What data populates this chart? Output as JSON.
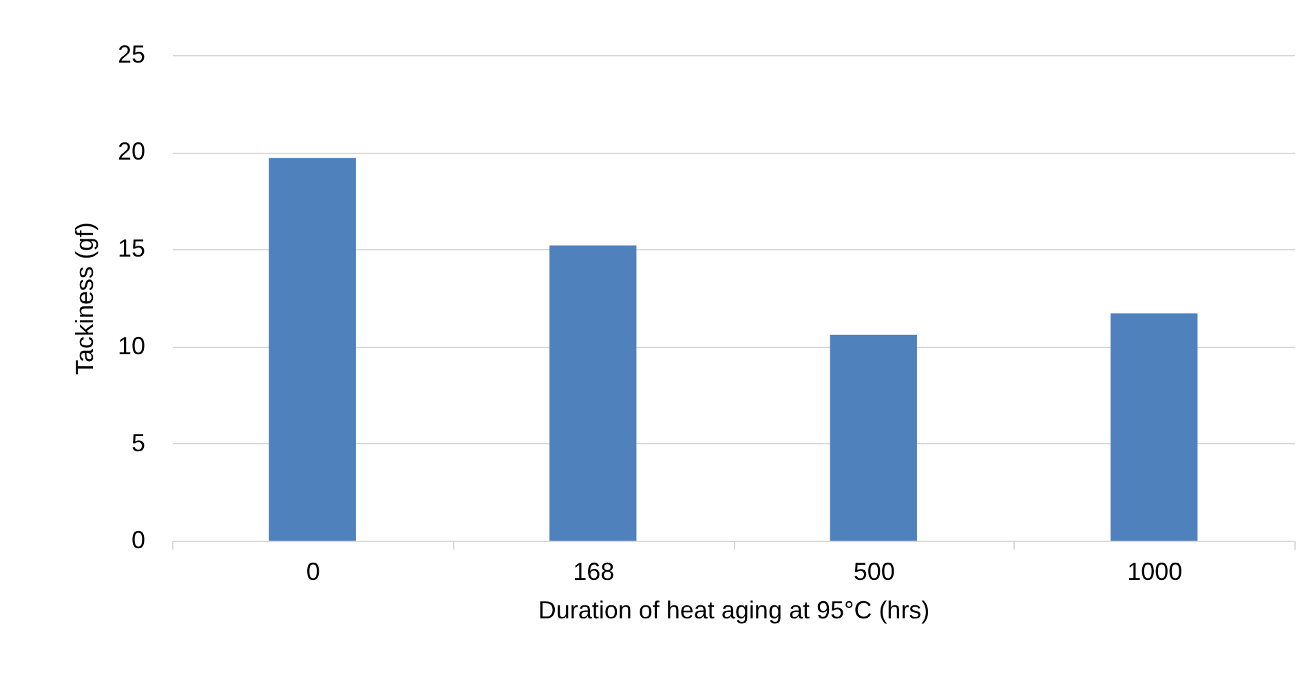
{
  "chart_data": {
    "type": "bar",
    "xlabel": "Duration of heat aging at 95°C (hrs)",
    "ylabel": "Tackiness (gf)",
    "categories": [
      "0",
      "168",
      "500",
      "1000"
    ],
    "values": [
      19.7,
      15.2,
      10.6,
      11.7
    ],
    "color": "#4f81bd",
    "ylim": [
      0,
      25
    ],
    "yticks": [
      0,
      5,
      10,
      15,
      20,
      25
    ],
    "grid": "y"
  }
}
